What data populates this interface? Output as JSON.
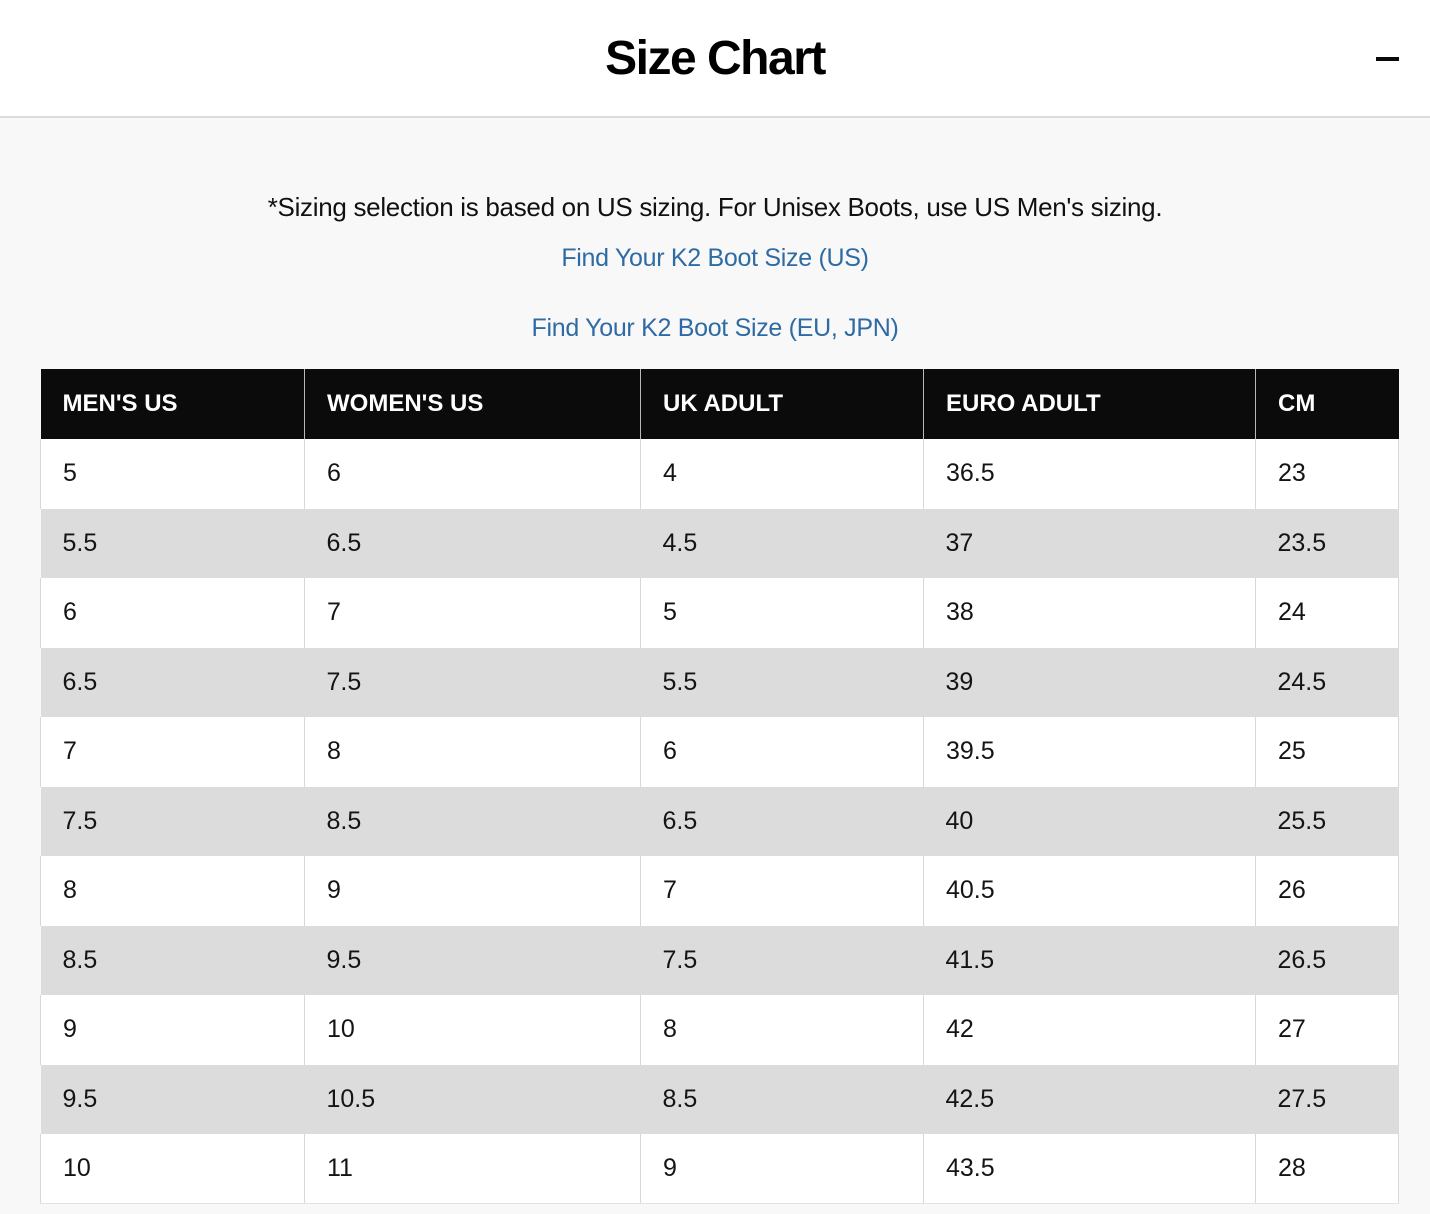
{
  "header": {
    "title": "Size Chart"
  },
  "body": {
    "note": "*Sizing selection is based on US sizing. For Unisex Boots, use US Men's sizing.",
    "links": [
      {
        "label": "Find Your K2 Boot Size (US)"
      },
      {
        "label": "Find Your K2 Boot Size (EU, JPN)"
      }
    ]
  },
  "size_table": {
    "headers": [
      "MEN'S US",
      "WOMEN'S US",
      "UK ADULT",
      "EURO ADULT",
      "CM"
    ],
    "rows": [
      [
        "5",
        "6",
        "4",
        "36.5",
        "23"
      ],
      [
        "5.5",
        "6.5",
        "4.5",
        "37",
        "23.5"
      ],
      [
        "6",
        "7",
        "5",
        "38",
        "24"
      ],
      [
        "6.5",
        "7.5",
        "5.5",
        "39",
        "24.5"
      ],
      [
        "7",
        "8",
        "6",
        "39.5",
        "25"
      ],
      [
        "7.5",
        "8.5",
        "6.5",
        "40",
        "25.5"
      ],
      [
        "8",
        "9",
        "7",
        "40.5",
        "26"
      ],
      [
        "8.5",
        "9.5",
        "7.5",
        "41.5",
        "26.5"
      ],
      [
        "9",
        "10",
        "8",
        "42",
        "27"
      ],
      [
        "9.5",
        "10.5",
        "8.5",
        "42.5",
        "27.5"
      ],
      [
        "10",
        "11",
        "9",
        "43.5",
        "28"
      ]
    ]
  },
  "icons": {
    "collapse": "minus-icon"
  },
  "colors": {
    "link_blue": "#2e6ba4",
    "table_header_bg": "#0b0b0b",
    "row_alt_gray": "#dcdcdc",
    "page_bg": "#f8f8f8",
    "titlebar_bg": "#ffffff"
  }
}
